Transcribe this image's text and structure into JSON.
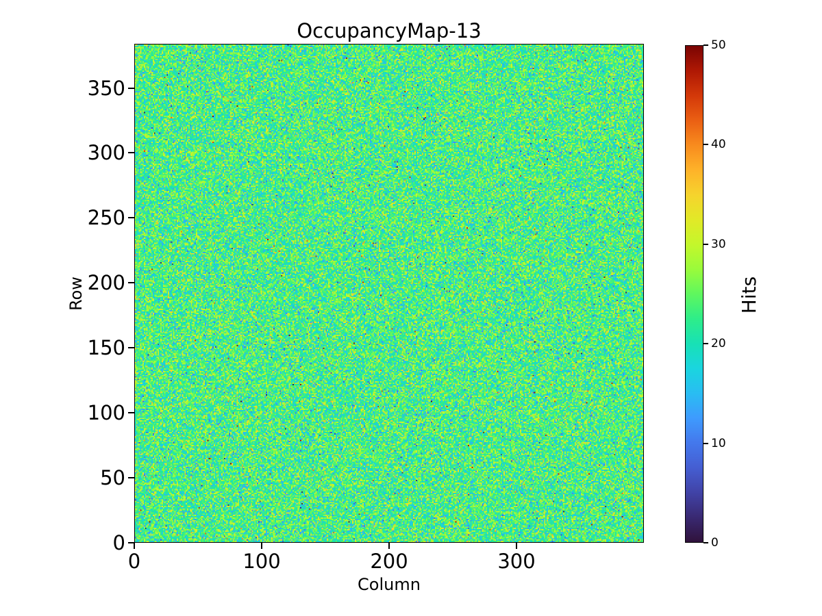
{
  "figure": {
    "background": "#ffffff",
    "text_color": "#000000"
  },
  "chart_data": {
    "type": "heatmap",
    "title": "OccupancyMap-13",
    "xlabel": "Column",
    "ylabel": "Row",
    "colorbar_label": "Hits",
    "cols": 400,
    "rows": 384,
    "x_range": [
      0,
      400
    ],
    "y_range": [
      0,
      384
    ],
    "x_ticks": [
      0,
      100,
      200,
      300
    ],
    "y_ticks": [
      0,
      50,
      100,
      150,
      200,
      250,
      300,
      350
    ],
    "vmin": 0,
    "vmax": 50,
    "colorbar_ticks": [
      0,
      10,
      20,
      30,
      40,
      50
    ],
    "grid": false,
    "legend": "none",
    "colormap": {
      "name": "turbo",
      "stops": [
        [
          0.0,
          "#30123b"
        ],
        [
          0.05,
          "#392972"
        ],
        [
          0.1,
          "#4143a7"
        ],
        [
          0.15,
          "#455ed2"
        ],
        [
          0.2,
          "#4478ec"
        ],
        [
          0.25,
          "#3e9bfe"
        ],
        [
          0.3,
          "#29bdf2"
        ],
        [
          0.35,
          "#1ad5df"
        ],
        [
          0.4,
          "#18e1b5"
        ],
        [
          0.45,
          "#2eed89"
        ],
        [
          0.5,
          "#5ff75e"
        ],
        [
          0.55,
          "#9afb3b"
        ],
        [
          0.6,
          "#c4f72b"
        ],
        [
          0.65,
          "#e2e927"
        ],
        [
          0.7,
          "#f6d32d"
        ],
        [
          0.75,
          "#feb229"
        ],
        [
          0.8,
          "#f88b1e"
        ],
        [
          0.85,
          "#ea5f13"
        ],
        [
          0.9,
          "#d33809"
        ],
        [
          0.95,
          "#af1804"
        ],
        [
          1.0,
          "#7a0403"
        ]
      ]
    },
    "data_summary": {
      "description": "Dense 400x384 per-pixel hit-count noise map: values cluster around ~23 hits (green/yellow-green) with frequent teal and orange fluctuations and sparse extreme pixels near 0 (dark navy) and 50 (dark red).",
      "mean": 23,
      "std": 5,
      "outlier_fraction": 0.006,
      "seed": 13
    }
  }
}
